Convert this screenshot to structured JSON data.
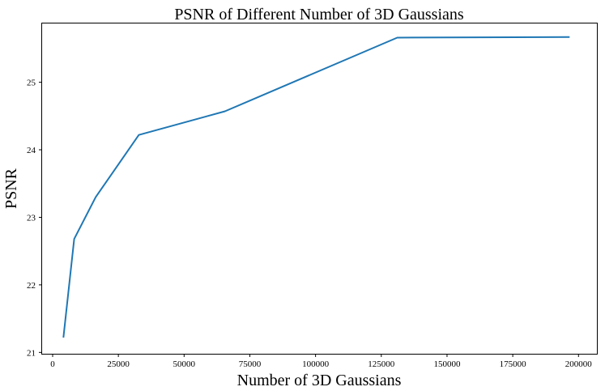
{
  "chart_data": {
    "type": "line",
    "title": "PSNR of Different Number of 3D Gaussians",
    "xlabel": "Number of 3D Gaussians",
    "ylabel": "PSNR",
    "xlim": [
      -4000,
      207000
    ],
    "ylim": [
      20.98,
      25.87
    ],
    "xticks": [
      0,
      25000,
      50000,
      75000,
      100000,
      125000,
      150000,
      175000,
      200000
    ],
    "yticks": [
      21,
      22,
      23,
      24,
      25
    ],
    "grid": false,
    "legend": "none",
    "series": [
      {
        "color": "#1f77b4",
        "x": [
          4096,
          8192,
          16384,
          32768,
          65536,
          131072,
          196608
        ],
        "y": [
          21.22,
          22.68,
          23.3,
          24.22,
          24.57,
          25.66,
          25.67
        ]
      }
    ]
  }
}
